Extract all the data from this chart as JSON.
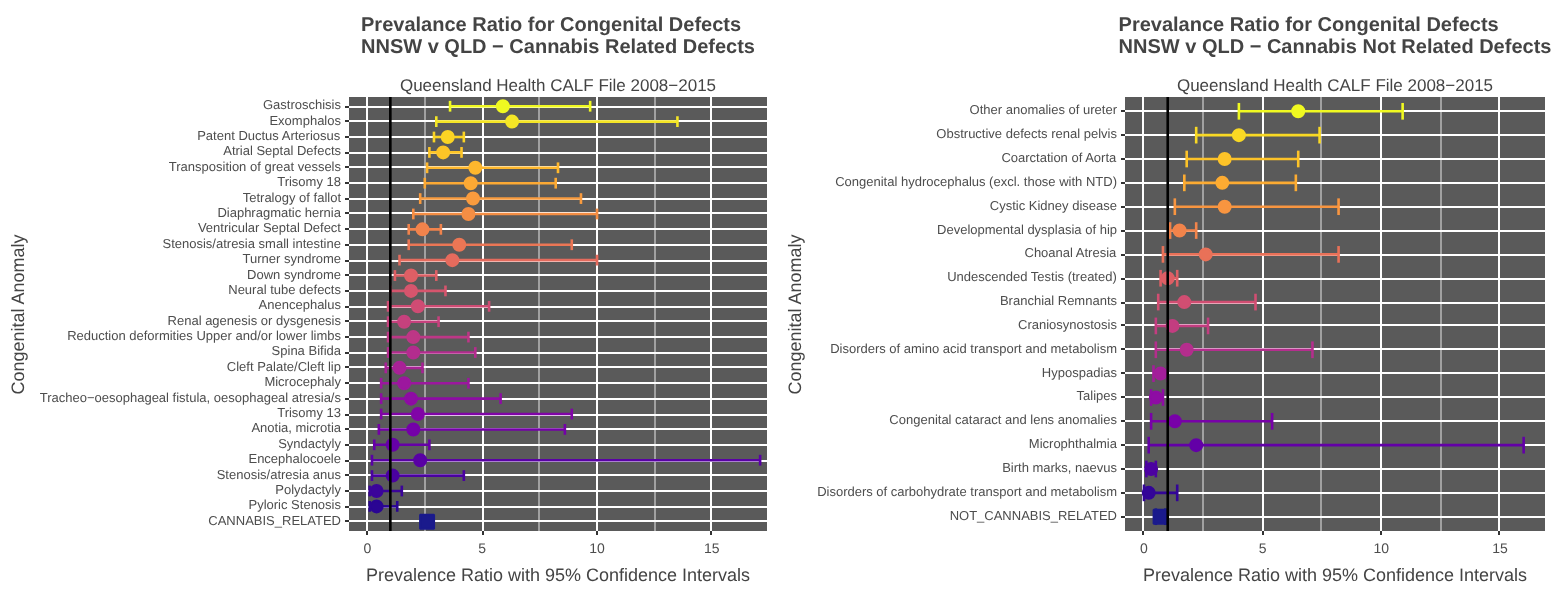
{
  "chart_data": [
    {
      "type": "scatter",
      "orientation": "horizontal",
      "title": "Prevalance Ratio for Congenital Defects\nNNSW v QLD − Cannabis Related Defects",
      "subtitle": "Queensland Health CALF File 2008−2015",
      "xlabel": "Prevalence Ratio with 95% Confidence Intervals",
      "ylabel": "Congenital Anomaly",
      "categories": [
        "Gastroschisis",
        "Exomphalos",
        "Patent Ductus Arteriosus",
        "Atrial Septal Defects",
        "Transposition of great vessels",
        "Trisomy 18",
        "Tetralogy of fallot",
        "Diaphragmatic hernia",
        "Ventricular Septal Defect",
        "Stenosis/atresia small intestine",
        "Turner syndrome",
        "Down syndrome",
        "Neural tube defects",
        "Anencephalus",
        "Renal agenesis or dysgenesis",
        "Reduction deformities Upper and/or lower limbs",
        "Spina Bifida",
        "Cleft Palate/Cleft lip",
        "Microcephaly",
        "Tracheo−oesophageal fistula, oesophageal atresia/s",
        "Trisomy 13",
        "Anotia, microtia",
        "Syndactyly",
        "Encephalocoele",
        "Stenosis/atresia anus",
        "Polydactyly",
        "Pyloric Stenosis",
        "CANNABIS_RELATED"
      ],
      "series": [
        {
          "marker": "circle",
          "values": [
            5.9,
            6.3,
            3.5,
            3.3,
            4.7,
            4.5,
            4.6,
            4.4,
            2.4,
            4.0,
            3.7,
            1.9,
            1.9,
            2.2,
            1.6,
            2.0,
            2.0,
            1.4,
            1.6,
            1.9,
            2.2,
            2.0,
            1.1,
            2.3,
            1.1,
            0.4,
            0.4,
            null
          ],
          "errors": [
            [
              3.6,
              9.7
            ],
            [
              3.0,
              13.5
            ],
            [
              2.9,
              4.2
            ],
            [
              2.7,
              4.1
            ],
            [
              2.6,
              8.3
            ],
            [
              2.5,
              8.2
            ],
            [
              2.3,
              9.3
            ],
            [
              2.0,
              10.0
            ],
            [
              1.8,
              3.2
            ],
            [
              1.8,
              8.9
            ],
            [
              1.4,
              10.0
            ],
            [
              1.2,
              3.0
            ],
            [
              1.0,
              3.4
            ],
            [
              0.9,
              5.3
            ],
            [
              0.9,
              3.1
            ],
            [
              0.9,
              4.4
            ],
            [
              0.9,
              4.7
            ],
            [
              0.8,
              2.4
            ],
            [
              0.6,
              4.4
            ],
            [
              0.6,
              5.8
            ],
            [
              0.6,
              8.9
            ],
            [
              0.5,
              8.6
            ],
            [
              0.3,
              2.7
            ],
            [
              0.2,
              17.1
            ],
            [
              0.2,
              4.2
            ],
            [
              0.1,
              1.5
            ],
            [
              0.1,
              1.3
            ],
            null
          ],
          "colors": [
            "#f0f921",
            "#f5e626",
            "#fbd424",
            "#fdc527",
            "#feb72d",
            "#fca934",
            "#f99b3e",
            "#f58e44",
            "#f1834c",
            "#eb7655",
            "#e56b5d",
            "#de5f65",
            "#d6556d",
            "#cf4c74",
            "#c6417d",
            "#bd3786",
            "#b32c8e",
            "#a82296",
            "#9c179e",
            "#8e0ca4",
            "#8104a7",
            "#7401a8",
            "#6600a7",
            "#5901a5",
            "#4a02a0",
            "#3b049a",
            "#2a0593",
            "#0d0887"
          ]
        },
        {
          "marker": "square",
          "values": [
            null,
            null,
            null,
            null,
            null,
            null,
            null,
            null,
            null,
            null,
            null,
            null,
            null,
            null,
            null,
            null,
            null,
            null,
            null,
            null,
            null,
            null,
            null,
            null,
            null,
            null,
            null,
            2.6
          ],
          "errors": [
            null,
            null,
            null,
            null,
            null,
            null,
            null,
            null,
            null,
            null,
            null,
            null,
            null,
            null,
            null,
            null,
            null,
            null,
            null,
            null,
            null,
            null,
            null,
            null,
            null,
            null,
            null,
            [
              2.4,
              2.8
            ]
          ],
          "color": "#1a1a8c"
        }
      ],
      "xlim": [
        -0.8,
        17.4
      ],
      "xticks": [
        0,
        5,
        10,
        15
      ],
      "grid": true,
      "ref_lines": [
        {
          "axis": "x",
          "value": 1,
          "color": "#000000"
        }
      ]
    },
    {
      "type": "scatter",
      "orientation": "horizontal",
      "title": "Prevalance Ratio for Congenital Defects\nNNSW v QLD − Cannabis Not Related Defects",
      "subtitle": "Queensland Health CALF File 2008−2015",
      "xlabel": "Prevalence Ratio with 95% Confidence Intervals",
      "ylabel": "Congenital Anomaly",
      "categories": [
        "Other anomalies of ureter",
        "Obstructive defects renal pelvis",
        "Coarctation of Aorta",
        "Congenital hydrocephalus (excl. those with NTD)",
        "Cystic Kidney disease",
        "Developmental dysplasia of hip",
        "Choanal Atresia",
        "Undescended Testis (treated)",
        "Branchial Remnants",
        "Craniosynostosis",
        "Disorders of amino acid transport and metabolism",
        "Hypospadias",
        "Talipes",
        "Congenital cataract and lens anomalies",
        "Microphthalmia",
        "Birth marks, naevus",
        "Disorders of carbohydrate transport and metabolism",
        "NOT_CANNABIS_RELATED"
      ],
      "series": [
        {
          "marker": "circle",
          "values": [
            6.5,
            4.0,
            3.4,
            3.3,
            3.4,
            1.5,
            2.6,
            1.0,
            1.7,
            1.2,
            1.8,
            0.7,
            0.5,
            1.3,
            2.2,
            0.3,
            0.2,
            null
          ],
          "errors": [
            [
              4.0,
              10.9
            ],
            [
              2.2,
              7.4
            ],
            [
              1.8,
              6.5
            ],
            [
              1.7,
              6.4
            ],
            [
              1.3,
              8.2
            ],
            [
              1.1,
              2.2
            ],
            [
              0.8,
              8.2
            ],
            [
              0.7,
              1.4
            ],
            [
              0.6,
              4.7
            ],
            [
              0.5,
              2.7
            ],
            [
              0.5,
              7.1
            ],
            [
              0.4,
              1.0
            ],
            [
              0.3,
              0.8
            ],
            [
              0.3,
              5.4
            ],
            [
              0.2,
              16.0
            ],
            [
              0.1,
              0.5
            ],
            [
              0.0,
              1.4
            ],
            null
          ],
          "colors": [
            "#f0f921",
            "#f9d924",
            "#fdc328",
            "#fcab32",
            "#f89540",
            "#f2844b",
            "#e97158",
            "#de5f65",
            "#d14e72",
            "#c33d80",
            "#b42e8d",
            "#a31e9a",
            "#8e0ca4",
            "#7801a8",
            "#6300a7",
            "#4c02a1",
            "#330597",
            "#0d0887"
          ]
        },
        {
          "marker": "square",
          "values": [
            null,
            null,
            null,
            null,
            null,
            null,
            null,
            null,
            null,
            null,
            null,
            null,
            null,
            null,
            null,
            null,
            null,
            0.7
          ],
          "errors": [
            null,
            null,
            null,
            null,
            null,
            null,
            null,
            null,
            null,
            null,
            null,
            null,
            null,
            null,
            null,
            null,
            null,
            [
              0.5,
              0.9
            ]
          ],
          "color": "#1a1a8c"
        }
      ],
      "xlim": [
        -0.8,
        16.9
      ],
      "xticks": [
        0,
        5,
        10,
        15
      ],
      "grid": true,
      "ref_lines": [
        {
          "axis": "x",
          "value": 1,
          "color": "#000000"
        }
      ]
    }
  ]
}
